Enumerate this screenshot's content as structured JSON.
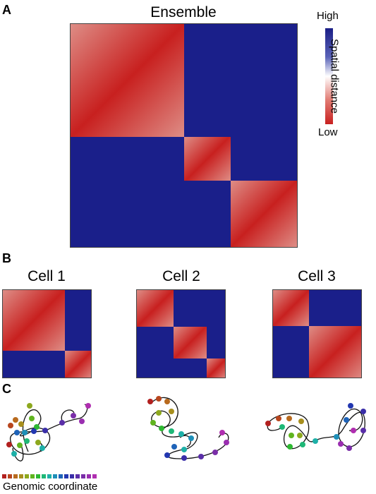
{
  "panels": {
    "a": "A",
    "b": "B",
    "c": "C"
  },
  "ensemble": {
    "title": "Ensemble"
  },
  "colorbar": {
    "high_label": "High",
    "low_label": "Low",
    "title": "Spatial distance",
    "colors": [
      "#1a1e86",
      "#5a63b8",
      "#ffffff",
      "#e17a72",
      "#c8201f"
    ]
  },
  "cells": [
    {
      "title": "Cell 1"
    },
    {
      "title": "Cell 2"
    },
    {
      "title": "Cell 3"
    }
  ],
  "genomic_coordinate": {
    "label": "Genomic coordinate",
    "colors": [
      "#b2201f",
      "#b8461e",
      "#b86a1e",
      "#a88f1e",
      "#8da81e",
      "#5fb41e",
      "#2db832",
      "#1eb877",
      "#1eb0a8",
      "#1e8fb8",
      "#1e63b8",
      "#2237b0",
      "#3a2ea8",
      "#5a2ea8",
      "#7a2ea8",
      "#9a2eb0",
      "#b02eb0"
    ]
  }
}
